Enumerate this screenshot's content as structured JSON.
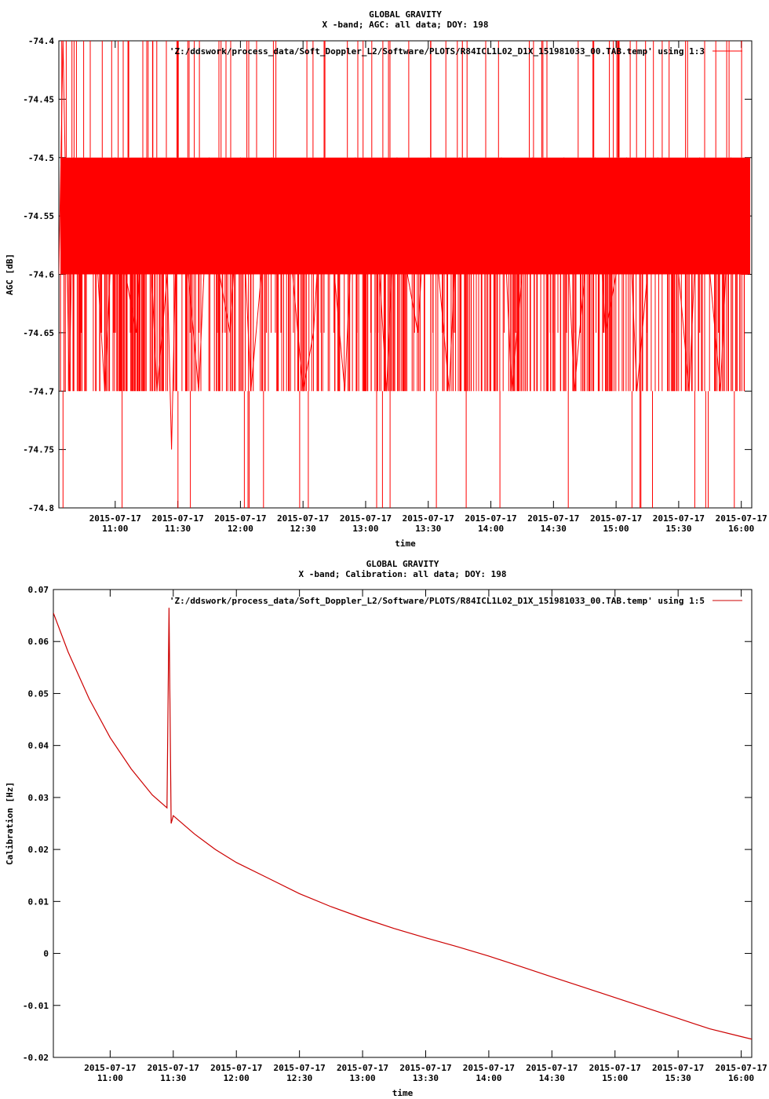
{
  "chart_data": [
    {
      "type": "line",
      "title": "GLOBAL GRAVITY",
      "subtitle": "X -band; AGC: all data; DOY: 198",
      "xlabel": "time",
      "ylabel": "AGC [dB]",
      "ylim": [
        -74.8,
        -74.4
      ],
      "yticks": [
        -74.4,
        -74.45,
        -74.5,
        -74.55,
        -74.6,
        -74.65,
        -74.7,
        -74.75,
        -74.8
      ],
      "ytick_labels": [
        "-74.4",
        "-74.45",
        "-74.5",
        "-74.55",
        "-74.6",
        "-74.65",
        "-74.7",
        "-74.75",
        "-74.8"
      ],
      "xlim": [
        "2015-07-17 10:33",
        "2015-07-17 16:05"
      ],
      "xtick_times": [
        "11:00",
        "11:30",
        "12:00",
        "12:30",
        "13:00",
        "13:30",
        "14:00",
        "14:30",
        "15:00",
        "15:30",
        "16:00"
      ],
      "xtick_labels": [
        [
          "2015-07-17",
          "11:00"
        ],
        [
          "2015-07-17",
          "11:30"
        ],
        [
          "2015-07-17",
          "12:00"
        ],
        [
          "2015-07-17",
          "12:30"
        ],
        [
          "2015-07-17",
          "13:00"
        ],
        [
          "2015-07-17",
          "13:30"
        ],
        [
          "2015-07-17",
          "14:00"
        ],
        [
          "2015-07-17",
          "14:30"
        ],
        [
          "2015-07-17",
          "15:00"
        ],
        [
          "2015-07-17",
          "15:30"
        ],
        [
          "2015-07-17",
          "16:00"
        ]
      ],
      "grid": false,
      "legend_position": "top-right",
      "series": [
        {
          "name": "'Z:/ddswork/process_data/Soft_Doppler_L2/Software/PLOTS/R84ICL1L02_D1X_151981033_00.TAB.temp' using 1:3",
          "color": "#ff0000",
          "note_values": "dense noise mostly between -74.5 and -74.7 dB, occasional spikes to -74.4 and -74.8",
          "x": [
            "10:33",
            "10:35",
            "10:38",
            "10:40",
            "10:45",
            "10:50",
            "10:55",
            "11:00",
            "11:05",
            "11:10",
            "11:15",
            "11:20",
            "11:25",
            "11:27",
            "11:30",
            "11:35",
            "11:40",
            "11:45",
            "11:50",
            "11:55",
            "12:00",
            "12:05",
            "12:10",
            "12:15",
            "12:20",
            "12:25",
            "12:30",
            "12:35",
            "12:40",
            "12:45",
            "12:50",
            "12:55",
            "13:00",
            "13:05",
            "13:10",
            "13:15",
            "13:20",
            "13:25",
            "13:30",
            "13:35",
            "13:40",
            "13:45",
            "13:50",
            "13:55",
            "14:00",
            "14:05",
            "14:10",
            "14:15",
            "14:20",
            "14:25",
            "14:30",
            "14:35",
            "14:40",
            "14:45",
            "14:50",
            "14:55",
            "15:00",
            "15:05",
            "15:10",
            "15:15",
            "15:20",
            "15:25",
            "15:30",
            "15:35",
            "15:40",
            "15:45",
            "15:50",
            "15:55",
            "16:00",
            "16:03"
          ],
          "y": [
            -74.6,
            -74.4,
            -74.7,
            -74.5,
            -74.6,
            -74.55,
            -74.7,
            -74.5,
            -74.6,
            -74.65,
            -74.5,
            -74.7,
            -74.6,
            -74.75,
            -74.5,
            -74.6,
            -74.7,
            -74.5,
            -74.6,
            -74.65,
            -74.5,
            -74.7,
            -74.6,
            -74.5,
            -74.55,
            -74.6,
            -74.7,
            -74.65,
            -74.5,
            -74.6,
            -74.7,
            -74.5,
            -74.6,
            -74.55,
            -74.7,
            -74.5,
            -74.6,
            -74.65,
            -74.5,
            -74.6,
            -74.7,
            -74.5,
            -74.6,
            -74.55,
            -74.6,
            -74.5,
            -74.7,
            -74.6,
            -74.5,
            -74.55,
            -74.6,
            -74.5,
            -74.7,
            -74.6,
            -74.5,
            -74.65,
            -74.6,
            -74.5,
            -74.7,
            -74.6,
            -74.5,
            -74.55,
            -74.6,
            -74.7,
            -74.5,
            -74.6,
            -74.7,
            -74.5,
            -74.6,
            -74.6
          ]
        }
      ]
    },
    {
      "type": "line",
      "title": "GLOBAL GRAVITY",
      "subtitle": "X -band; Calibration: all data; DOY: 198",
      "xlabel": "time",
      "ylabel": "Calibration [Hz]",
      "ylim": [
        -0.02,
        0.07
      ],
      "yticks": [
        0.07,
        0.06,
        0.05,
        0.04,
        0.03,
        0.02,
        0.01,
        0,
        -0.01,
        -0.02
      ],
      "ytick_labels": [
        "0.07",
        "0.06",
        "0.05",
        "0.04",
        "0.03",
        "0.02",
        "0.01",
        "0",
        "-0.01",
        "-0.02"
      ],
      "xlim": [
        "2015-07-17 10:33",
        "2015-07-17 16:05"
      ],
      "xtick_times": [
        "11:00",
        "11:30",
        "12:00",
        "12:30",
        "13:00",
        "13:30",
        "14:00",
        "14:30",
        "15:00",
        "15:30",
        "16:00"
      ],
      "xtick_labels": [
        [
          "2015-07-17",
          "11:00"
        ],
        [
          "2015-07-17",
          "11:30"
        ],
        [
          "2015-07-17",
          "12:00"
        ],
        [
          "2015-07-17",
          "12:30"
        ],
        [
          "2015-07-17",
          "13:00"
        ],
        [
          "2015-07-17",
          "13:30"
        ],
        [
          "2015-07-17",
          "14:00"
        ],
        [
          "2015-07-17",
          "14:30"
        ],
        [
          "2015-07-17",
          "15:00"
        ],
        [
          "2015-07-17",
          "15:30"
        ],
        [
          "2015-07-17",
          "16:00"
        ]
      ],
      "grid": false,
      "legend_position": "top-right",
      "series": [
        {
          "name": "'Z:/ddswork/process_data/Soft_Doppler_L2/Software/PLOTS/R84ICL1L02_D1X_151981033_00.TAB.temp' using 1:5",
          "color": "#cc0000",
          "x": [
            "10:33",
            "10:40",
            "10:50",
            "11:00",
            "11:10",
            "11:20",
            "11:27",
            "11:28",
            "11:29",
            "11:30",
            "11:40",
            "11:50",
            "12:00",
            "12:15",
            "12:30",
            "12:45",
            "13:00",
            "13:15",
            "13:30",
            "13:45",
            "14:00",
            "14:15",
            "14:30",
            "14:45",
            "15:00",
            "15:15",
            "15:30",
            "15:45",
            "16:00",
            "16:05"
          ],
          "y": [
            0.0655,
            0.058,
            0.049,
            0.0415,
            0.0355,
            0.0305,
            0.028,
            0.0665,
            0.025,
            0.0265,
            0.023,
            0.02,
            0.0175,
            0.0145,
            0.0115,
            0.009,
            0.0068,
            0.0048,
            0.003,
            0.0013,
            -0.0005,
            -0.0025,
            -0.0045,
            -0.0065,
            -0.0085,
            -0.0105,
            -0.0125,
            -0.0145,
            -0.016,
            -0.0165
          ]
        }
      ]
    }
  ]
}
